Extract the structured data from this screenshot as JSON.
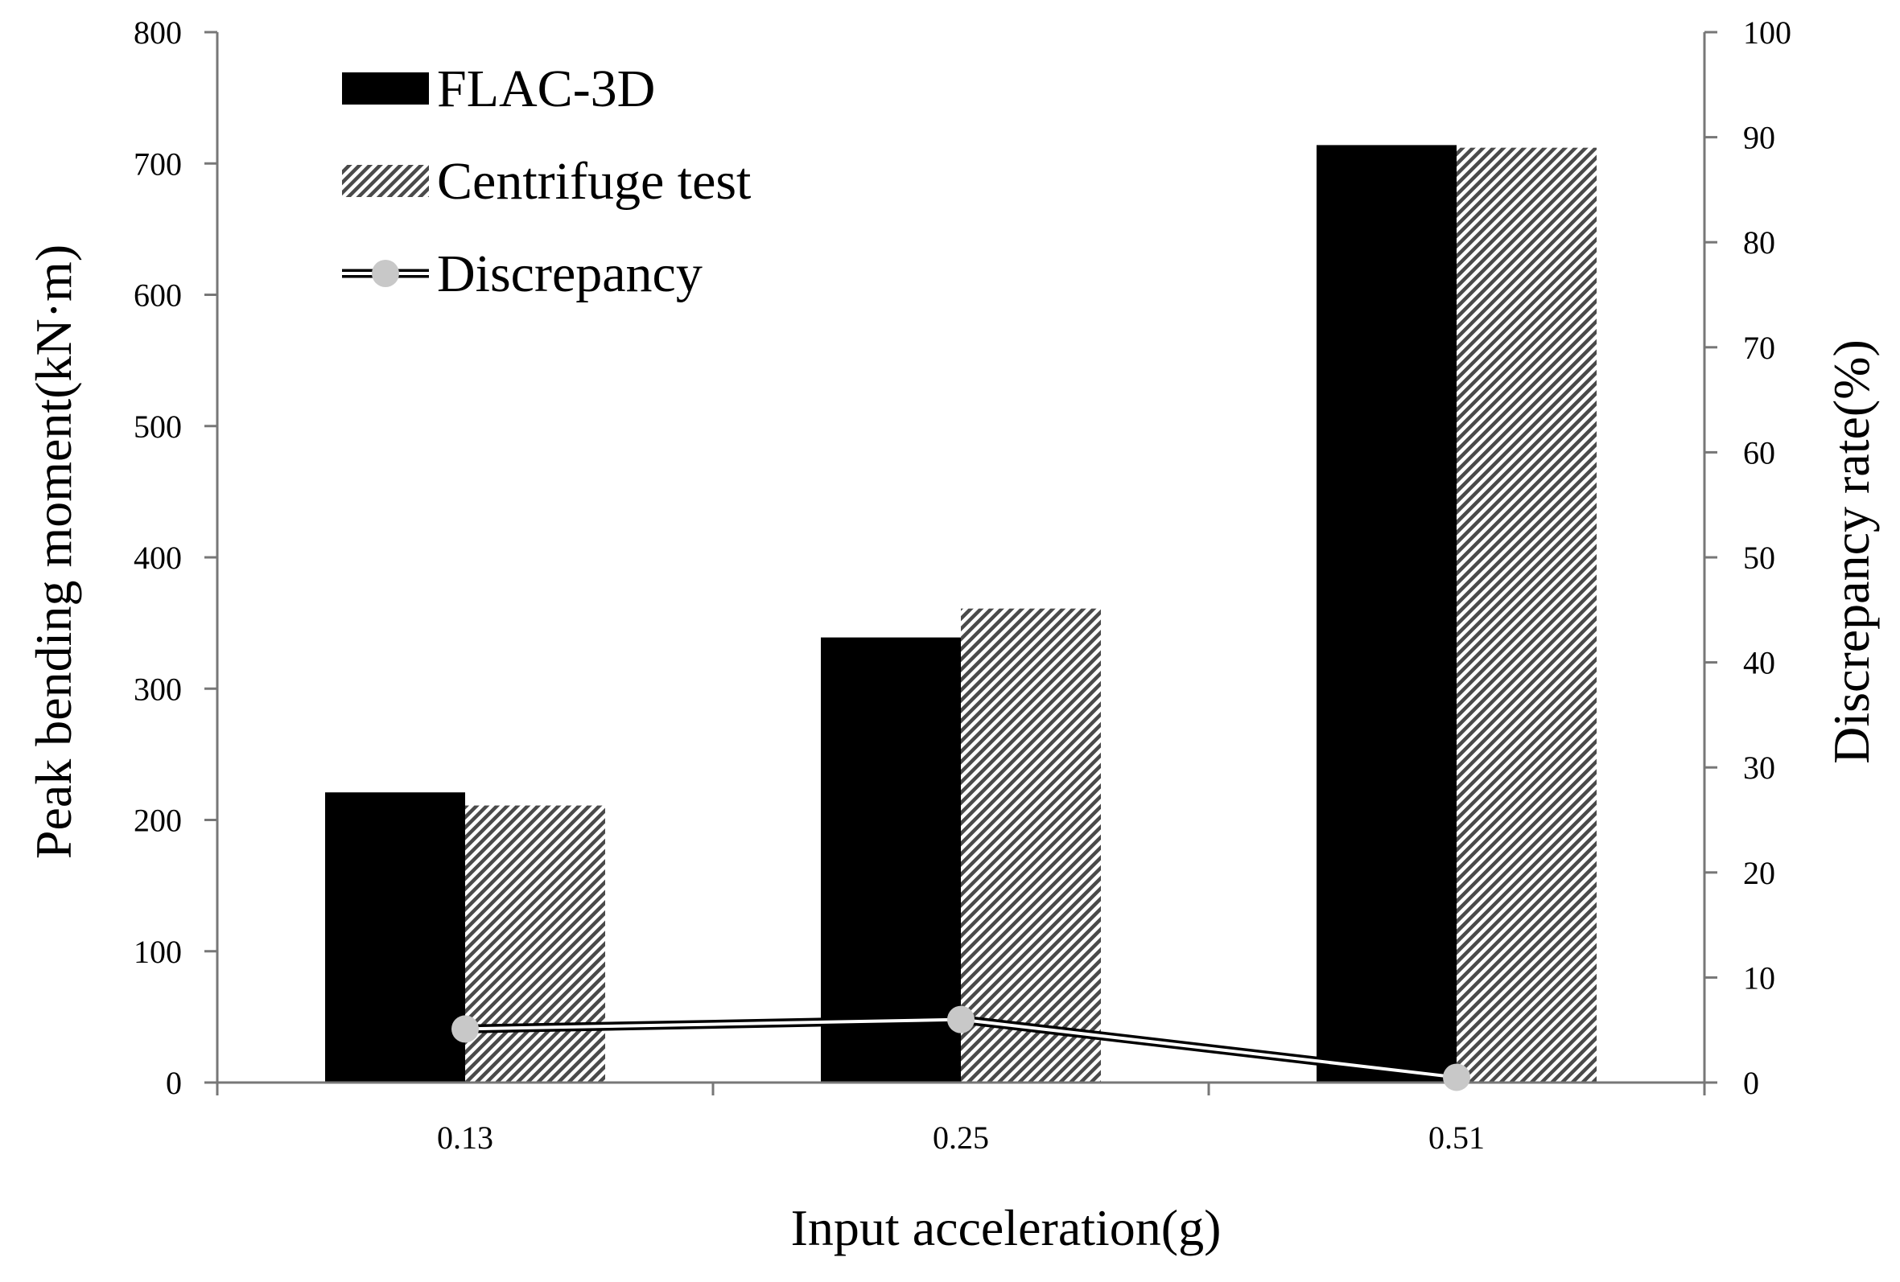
{
  "chart_data": {
    "type": "bar",
    "categories": [
      "0.13",
      "0.25",
      "0.51"
    ],
    "series": [
      {
        "name": "FLAC-3D",
        "kind": "bar",
        "axis": "left",
        "pattern": "solid",
        "color": "#000000",
        "values": [
          221,
          339,
          714
        ]
      },
      {
        "name": "Centrifuge test",
        "kind": "bar",
        "axis": "left",
        "pattern": "hatch",
        "color": "#555555",
        "values": [
          211,
          361,
          712
        ]
      },
      {
        "name": "Discrepancy",
        "kind": "line",
        "axis": "right",
        "marker_color": "#c8c8c8",
        "values": [
          5.1,
          6.0,
          0.5
        ]
      }
    ],
    "xlabel": "Input acceleration(g)",
    "ylabel": "Peak bending moment(kN·m)",
    "y2label": "Discrepancy rate(%)",
    "ylim": [
      0,
      800
    ],
    "y2lim": [
      0,
      100
    ],
    "yticks": [
      "0",
      "100",
      "200",
      "300",
      "400",
      "500",
      "600",
      "700",
      "800"
    ],
    "y2ticks": [
      "0",
      "10",
      "20",
      "30",
      "40",
      "50",
      "60",
      "70",
      "80",
      "90",
      "100"
    ],
    "grid": false,
    "legend": "top-left"
  }
}
